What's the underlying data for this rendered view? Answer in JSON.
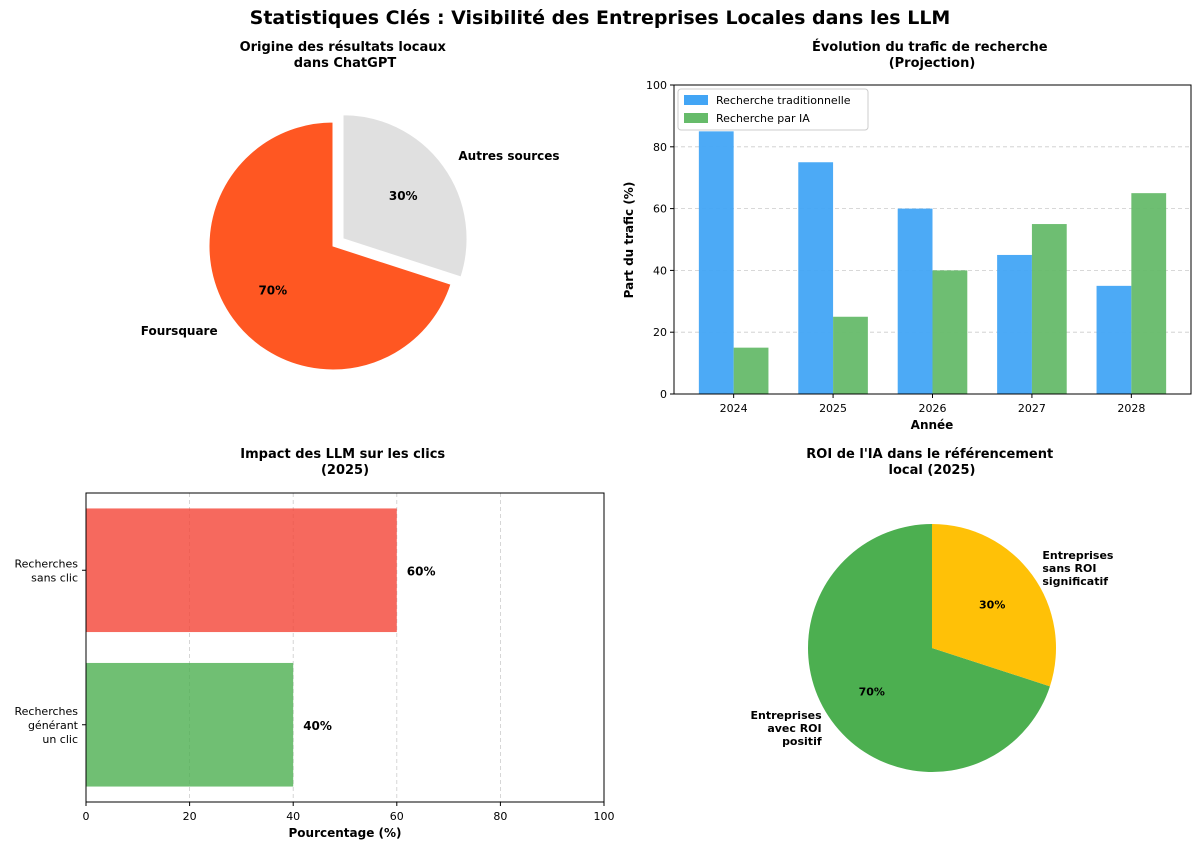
{
  "suptitle": "Statistiques Clés : Visibilité des Entreprises Locales dans les LLM",
  "chart_data": [
    {
      "type": "pie",
      "title": [
        "Origine des résultats locaux",
        "dans ChatGPT"
      ],
      "slices": [
        {
          "label": "Foursquare",
          "value": 70,
          "pct_label": "70%",
          "color": "#ff5722",
          "exploded": false
        },
        {
          "label": "Autres sources",
          "value": 30,
          "pct_label": "30%",
          "color": "#e0e0e0",
          "exploded": true
        }
      ]
    },
    {
      "type": "bar",
      "title": [
        "Évolution du trafic de recherche",
        "(Projection)"
      ],
      "categories": [
        "2024",
        "2025",
        "2026",
        "2027",
        "2028"
      ],
      "series": [
        {
          "name": "Recherche traditionnelle",
          "color": "#42a5f5",
          "values": [
            85,
            75,
            60,
            45,
            35
          ]
        },
        {
          "name": "Recherche par IA",
          "color": "#66bb6a",
          "values": [
            15,
            25,
            40,
            55,
            65
          ]
        }
      ],
      "xlabel": "Année",
      "ylabel": "Part du trafic (%)",
      "ylim": [
        0,
        100
      ],
      "yticks": [
        "0",
        "20",
        "40",
        "60",
        "80",
        "100"
      ],
      "legend": "top-left",
      "grid": "y-dashed"
    },
    {
      "type": "barh",
      "title": [
        "Impact des LLM sur les clics",
        "(2025)"
      ],
      "categories": [
        {
          "lines": [
            "Recherches",
            "sans clic"
          ],
          "value": 60,
          "value_label": "60%",
          "color": "#f44336"
        },
        {
          "lines": [
            "Recherches",
            "générant",
            "un clic"
          ],
          "value": 40,
          "value_label": "40%",
          "color": "#4caf50"
        }
      ],
      "xlabel": "Pourcentage (%)",
      "xlim": [
        0,
        100
      ],
      "xticks": [
        "0",
        "20",
        "40",
        "60",
        "80",
        "100"
      ],
      "grid": "x-dashed"
    },
    {
      "type": "pie",
      "title": [
        "ROI de l'IA dans le référencement",
        "local (2025)"
      ],
      "slices": [
        {
          "lines": [
            "Entreprises",
            "avec ROI",
            "positif"
          ],
          "value": 70,
          "pct_label": "70%",
          "color": "#4caf50"
        },
        {
          "lines": [
            "Entreprises",
            "sans ROI",
            "significatif"
          ],
          "value": 30,
          "pct_label": "30%",
          "color": "#ffc107"
        }
      ]
    }
  ]
}
